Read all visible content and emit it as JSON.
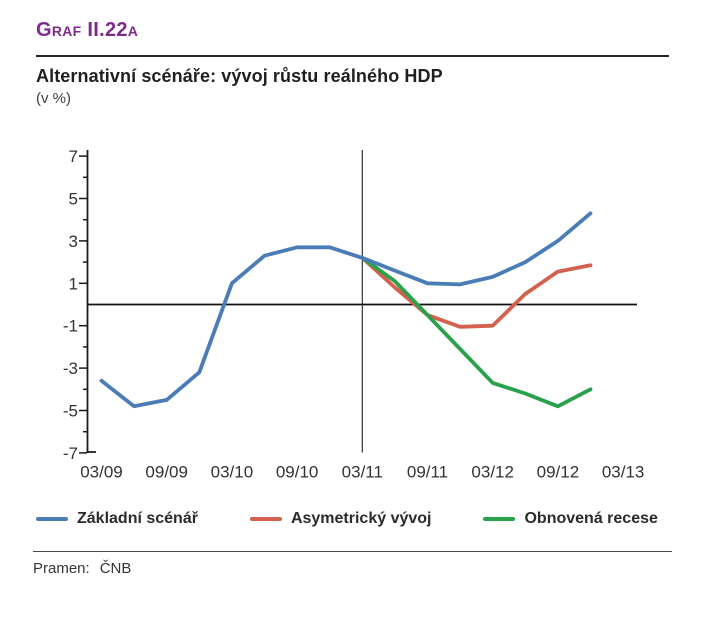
{
  "page": {
    "graph_label": "Graf II.22a",
    "title": "Alternativní scénáře: vývoj růstu reálného HDP",
    "subtitle": "(v %)",
    "source_label": "Pramen:",
    "source_value": "ČNB"
  },
  "colors": {
    "heading_accent": "#7d2b8b",
    "axis": "#1a1a1a",
    "baseline_series": "#4a7db6",
    "asymmetric_series": "#d4604e",
    "recession_series": "#2aa14b"
  },
  "chart_data": {
    "type": "line",
    "title": "Alternativní scénáře: vývoj růstu reálného HDP",
    "unit": "v %",
    "x": [
      "03/09",
      "06/09",
      "09/09",
      "12/09",
      "03/10",
      "06/10",
      "09/10",
      "12/10",
      "03/11",
      "06/11",
      "09/11",
      "12/11",
      "03/12",
      "06/12",
      "09/12",
      "12/12"
    ],
    "xtick_labels": [
      "03/09",
      "09/09",
      "03/10",
      "09/10",
      "03/11",
      "09/11",
      "03/12",
      "09/12",
      "03/13"
    ],
    "ylim": [
      -7,
      7
    ],
    "ytick_label_values": [
      -7,
      -5,
      -3,
      -1,
      1,
      3,
      5,
      7
    ],
    "ytick_minor_values": [
      -6,
      -4,
      -2,
      2,
      4,
      6
    ],
    "zero_line": true,
    "grid": false,
    "forecast_divider_x": "03/11",
    "legend_position": "bottom",
    "series": [
      {
        "name": "Základní scénář",
        "color": "#4a7db6",
        "z_order": 3,
        "values": [
          -3.6,
          -4.8,
          -4.5,
          -3.2,
          1.0,
          2.3,
          2.7,
          2.7,
          2.2,
          1.6,
          1.0,
          0.95,
          1.3,
          2.0,
          3.0,
          4.3
        ]
      },
      {
        "name": "Asymetrický vývoj",
        "color": "#d4604e",
        "z_order": 1,
        "values": [
          null,
          null,
          null,
          null,
          null,
          null,
          null,
          null,
          2.2,
          0.8,
          -0.5,
          -1.05,
          -1.0,
          0.5,
          1.55,
          1.85
        ]
      },
      {
        "name": "Obnovená recese",
        "color": "#2aa14b",
        "z_order": 2,
        "values": [
          null,
          null,
          null,
          null,
          null,
          null,
          null,
          null,
          2.2,
          1.1,
          -0.5,
          -2.1,
          -3.7,
          -4.2,
          -4.8,
          -4.0
        ]
      }
    ]
  }
}
